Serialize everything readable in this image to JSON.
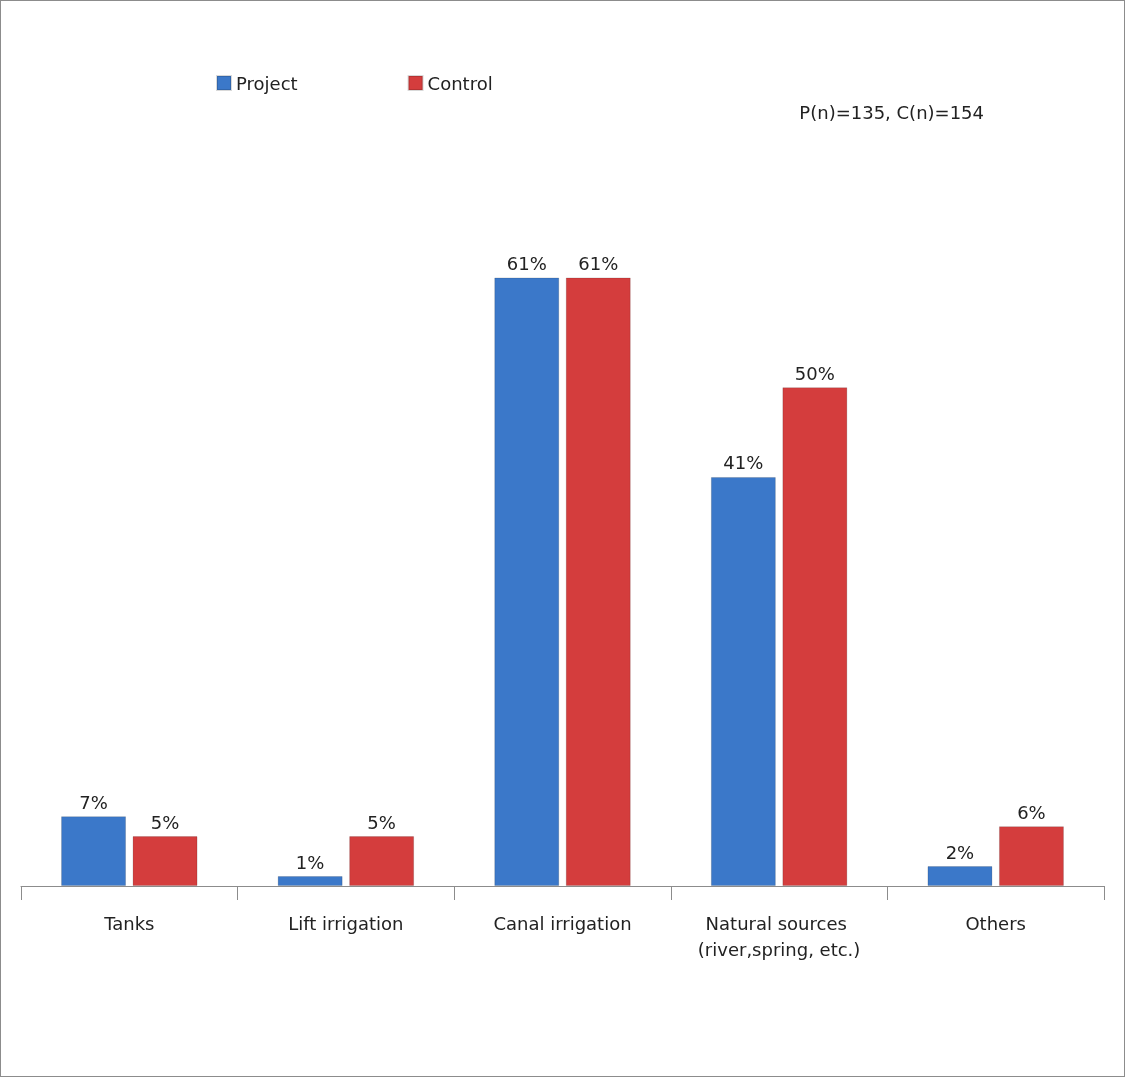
{
  "chart_data": {
    "type": "bar",
    "categories": [
      "Tanks",
      "Lift irrigation",
      "Canal irrigation",
      "Natural sources (river,spring, etc.)",
      "Others"
    ],
    "series": [
      {
        "name": "Project",
        "color": "#3b78c9",
        "values": [
          7,
          1,
          61,
          41,
          2
        ],
        "value_labels": [
          "7%",
          "1%",
          "61%",
          "41%",
          "2%"
        ]
      },
      {
        "name": "Control",
        "color": "#d43d3d",
        "values": [
          5,
          5,
          61,
          50,
          6
        ],
        "value_labels": [
          "5%",
          "5%",
          "61%",
          "50%",
          "6%"
        ]
      }
    ],
    "legend": "top left",
    "grid": false,
    "annotations": [
      "P(n)=135, C(n)=154"
    ]
  }
}
